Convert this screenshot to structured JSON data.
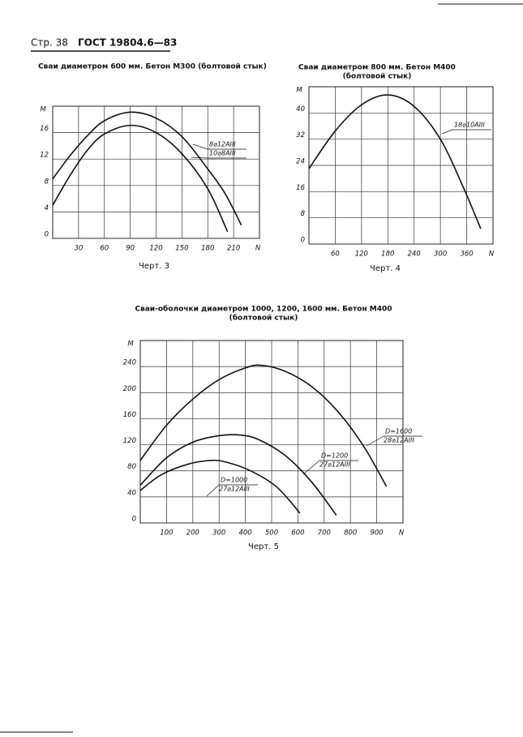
{
  "header": {
    "page": "Стр. 38",
    "standard": "ГОСТ 19804.6—83"
  },
  "chart_data": [
    {
      "type": "line",
      "title": "Сваи диаметром 600 мм. Бетон М300 (болтовой стык)",
      "caption": "Черт. 3",
      "xlabel": "N",
      "ylabel": "M",
      "xlim": [
        0,
        240
      ],
      "ylim": [
        0,
        20
      ],
      "xticks": [
        30,
        60,
        90,
        120,
        150,
        180,
        210
      ],
      "yticks": [
        0,
        4,
        8,
        12,
        16
      ],
      "grid": true,
      "series": [
        {
          "name": "8⌀12АIII",
          "color": "#111",
          "x": [
            0,
            20,
            40,
            60,
            90,
            120,
            150,
            180,
            200,
            219
          ],
          "values": [
            9,
            12.5,
            15.5,
            17.8,
            19.1,
            18.2,
            15.4,
            10.5,
            6.8,
            2
          ]
        },
        {
          "name": "10⌀8АIII",
          "color": "#111",
          "x": [
            0,
            20,
            40,
            60,
            90,
            120,
            150,
            180,
            203
          ],
          "values": [
            5,
            9.5,
            13.3,
            15.8,
            17.1,
            16,
            12.8,
            7.5,
            1
          ]
        }
      ]
    },
    {
      "type": "line",
      "title": "Сваи диаметром 800 мм. Бетон М400",
      "subtitle": "(болтовой стык)",
      "caption": "Черт. 4",
      "xlabel": "N",
      "ylabel": "M",
      "xlim": [
        0,
        420
      ],
      "ylim": [
        0,
        48
      ],
      "xticks": [
        60,
        120,
        180,
        240,
        300,
        360
      ],
      "yticks": [
        0,
        8,
        16,
        24,
        32,
        40
      ],
      "grid": true,
      "series": [
        {
          "name": "18⌀10АIII",
          "color": "#111",
          "x": [
            0,
            60,
            120,
            180,
            240,
            300,
            350,
            392
          ],
          "values": [
            23,
            34.5,
            42.5,
            45.5,
            42,
            32,
            18,
            4.7
          ]
        }
      ]
    },
    {
      "type": "line",
      "title": "Сваи-оболочки диаметром 1000, 1200, 1600 мм. Бетон М400",
      "subtitle": "(болтовой стык)",
      "caption": "Черт. 5",
      "xlabel": "N",
      "ylabel": "M",
      "xlim": [
        0,
        1000
      ],
      "ylim": [
        0,
        280
      ],
      "xticks": [
        100,
        200,
        300,
        400,
        500,
        600,
        700,
        800,
        900
      ],
      "yticks": [
        0,
        40,
        80,
        120,
        160,
        200,
        240
      ],
      "grid": true,
      "series": [
        {
          "name": "D=1600",
          "reinforcement": "28⌀12АIII",
          "color": "#111",
          "x": [
            0,
            100,
            200,
            300,
            400,
            460,
            550,
            650,
            750,
            850,
            937
          ],
          "values": [
            96,
            150,
            190,
            220,
            238,
            242,
            233,
            210,
            172,
            118,
            56
          ]
        },
        {
          "name": "D=1200",
          "reinforcement": "27⌀12АIII",
          "color": "#111",
          "x": [
            0,
            100,
            200,
            300,
            380,
            450,
            550,
            650,
            746
          ],
          "values": [
            58,
            100,
            124,
            134,
            135,
            128,
            104,
            64,
            12
          ]
        },
        {
          "name": "D=1000",
          "reinforcement": "27⌀12АIII",
          "color": "#111",
          "x": [
            0,
            80,
            180,
            270,
            330,
            420,
            520,
            608
          ],
          "values": [
            50,
            74,
            90,
            96,
            93,
            80,
            55,
            15
          ]
        }
      ]
    }
  ]
}
